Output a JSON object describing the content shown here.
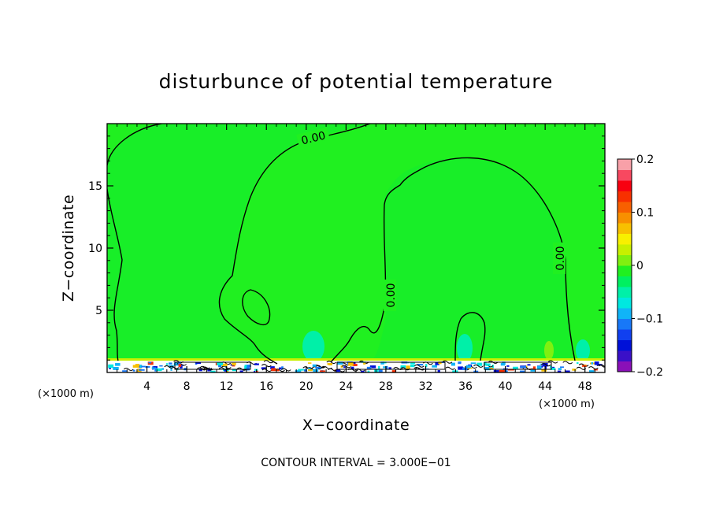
{
  "chart_data": {
    "type": "heatmap",
    "title": "disturbunce of potential temperature",
    "xlabel": "X−coordinate",
    "ylabel": "Z−coordinate",
    "x_unit": "(×1000 m)",
    "y_unit": "(×1000 m)",
    "xlim": [
      0,
      50
    ],
    "ylim": [
      0,
      20
    ],
    "x_ticks": [
      4,
      8,
      12,
      16,
      20,
      24,
      28,
      32,
      36,
      40,
      44,
      48
    ],
    "y_ticks": [
      5,
      10,
      15
    ],
    "contour_label": "0.00",
    "footer": "CONTOUR INTERVAL = 3.000E−01",
    "colorbar": {
      "min": -0.2,
      "max": 0.2,
      "tick_values": [
        0.2,
        0.1,
        0,
        -0.1,
        -0.2
      ],
      "tick_labels": [
        "0.2",
        "0.1",
        "0",
        "−0.1",
        "−0.2"
      ],
      "levels": [
        "#8a10b8",
        "#3a10c8",
        "#0010d8",
        "#1040f0",
        "#1878f8",
        "#10b4f8",
        "#00e8e0",
        "#00f0a8",
        "#00f060",
        "#20f020",
        "#80f010",
        "#c8f000",
        "#f8f000",
        "#f8c000",
        "#f89000",
        "#f86000",
        "#f83000",
        "#f80010",
        "#f84860",
        "#f8a0a8"
      ]
    },
    "background_color": "#20f020"
  }
}
